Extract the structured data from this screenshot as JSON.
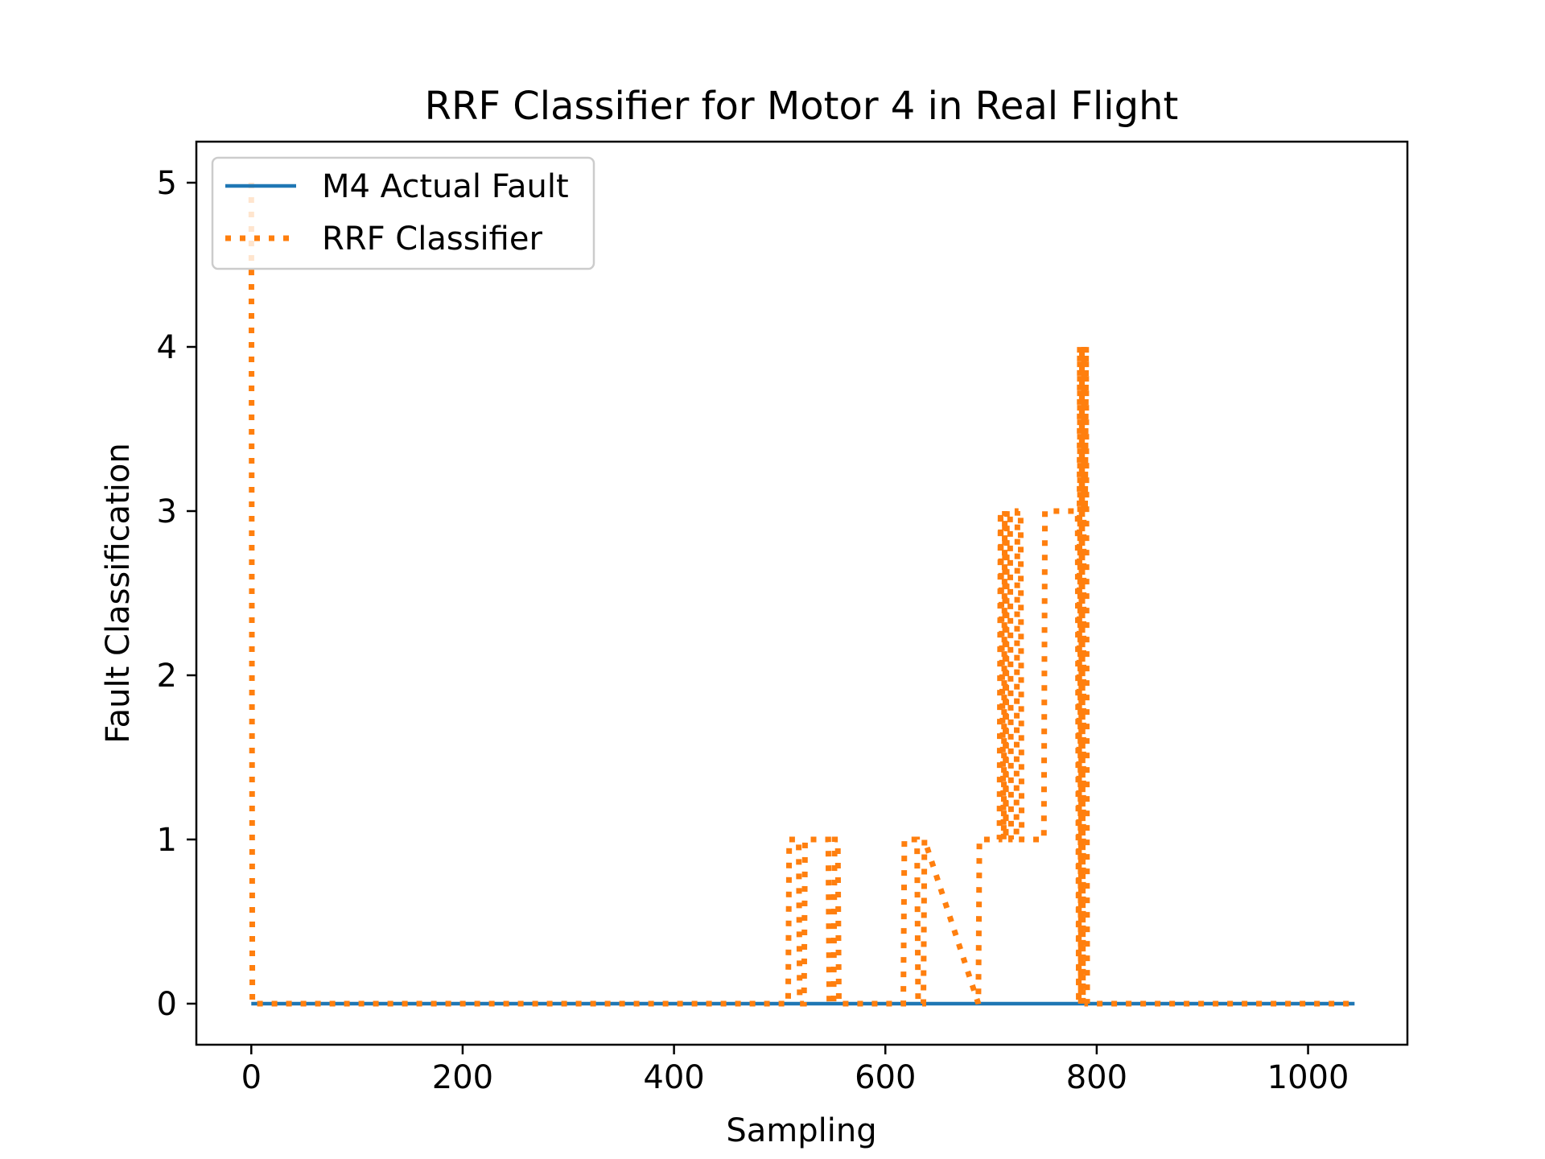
{
  "chart_data": {
    "type": "line",
    "title": "RRF Classifier for Motor 4 in Real Flight",
    "xlabel": "Sampling",
    "ylabel": "Fault Classification",
    "xlim": [
      -52,
      1094
    ],
    "ylim": [
      -0.25,
      5.25
    ],
    "xticks": [
      0,
      200,
      400,
      600,
      800,
      1000
    ],
    "xtick_labels": [
      "0",
      "200",
      "400",
      "600",
      "800",
      "1000"
    ],
    "yticks": [
      0,
      1,
      2,
      3,
      4,
      5
    ],
    "ytick_labels": [
      "0",
      "1",
      "2",
      "3",
      "4",
      "5"
    ],
    "grid": false,
    "legend_position": "upper left",
    "series": [
      {
        "name": "M4 Actual Fault",
        "style": "solid",
        "color": "#1f77b4",
        "x": [
          0,
          1044
        ],
        "y": [
          0,
          0
        ]
      },
      {
        "name": "RRF Classifier",
        "style": "dotted",
        "color": "#ff7f0e",
        "x": [
          0,
          1,
          508,
          509,
          518,
          519,
          523,
          524,
          546,
          547,
          551,
          552,
          555,
          556,
          617,
          618,
          630,
          631,
          636,
          637,
          688,
          689,
          700,
          701,
          708,
          709,
          712,
          713,
          714,
          715,
          718,
          719,
          724,
          725,
          728,
          729,
          750,
          751,
          782,
          783,
          784,
          785,
          786,
          787,
          788,
          789,
          790,
          791,
          1044
        ],
        "y": [
          5,
          0,
          0,
          1,
          1,
          0,
          0,
          1,
          1,
          0,
          0,
          1,
          1,
          0,
          0,
          1,
          1,
          0,
          0,
          1,
          0,
          1,
          1,
          1,
          1,
          3,
          1,
          3,
          1,
          3,
          3,
          1,
          1,
          3,
          3,
          1,
          1,
          3,
          3,
          0,
          4,
          0,
          4,
          0,
          4,
          3,
          4,
          0,
          0
        ]
      }
    ]
  }
}
